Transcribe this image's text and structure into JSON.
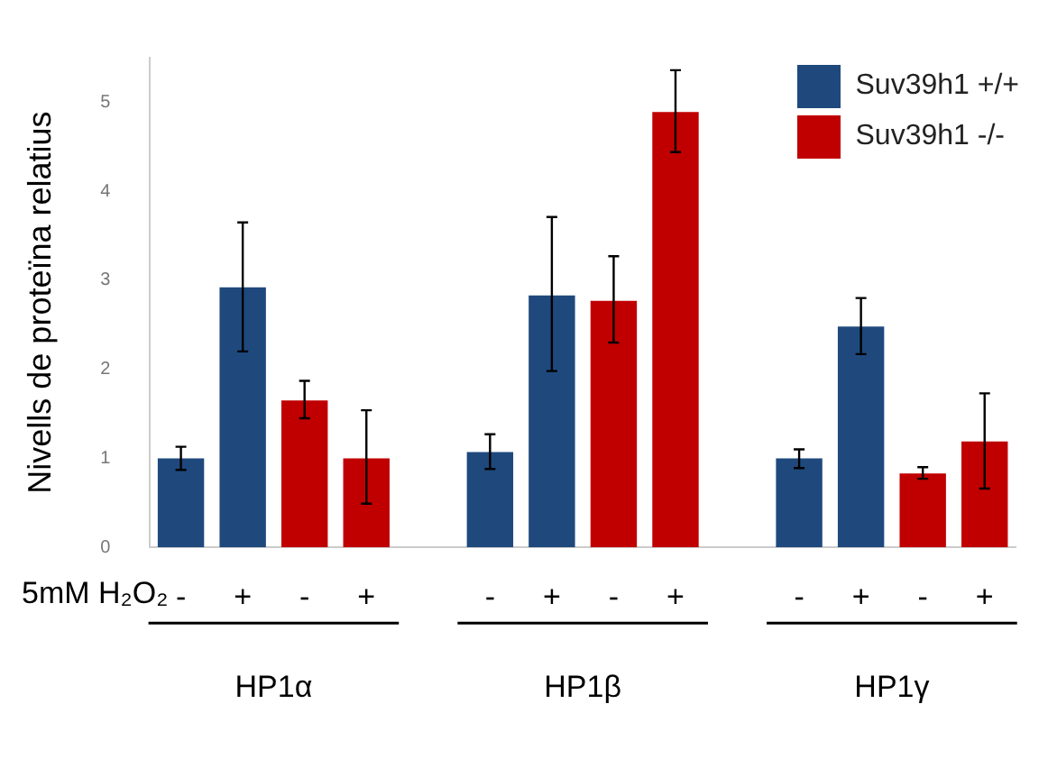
{
  "chart_data": {
    "type": "bar",
    "ylabel": "Nivells de proteïna relatius",
    "xlabel": "5mM H₂O₂",
    "categories": [
      "-",
      "+",
      "-",
      "+",
      null,
      "-",
      "+",
      "-",
      "+",
      null,
      "-",
      "+",
      "-",
      "+"
    ],
    "series": [
      {
        "name": "Suv39h1 +/+",
        "color": "#1f497d",
        "values": [
          1.0,
          2.92,
          null,
          null,
          null,
          1.07,
          2.83,
          null,
          null,
          null,
          1.0,
          2.48,
          null,
          null
        ],
        "errors": [
          [
            0.87,
            1.13
          ],
          [
            2.2,
            3.65
          ],
          null,
          null,
          null,
          [
            0.88,
            1.27
          ],
          [
            1.98,
            3.71
          ],
          null,
          null,
          null,
          [
            0.89,
            1.1
          ],
          [
            2.17,
            2.8
          ],
          null,
          null
        ]
      },
      {
        "name": "Suv39h1 -/-",
        "color": "#c00000",
        "values": [
          null,
          null,
          1.65,
          1.0,
          null,
          null,
          null,
          2.77,
          4.89,
          null,
          null,
          null,
          0.83,
          1.19
        ],
        "errors": [
          null,
          null,
          [
            1.45,
            1.87
          ],
          [
            0.49,
            1.54
          ],
          null,
          null,
          null,
          [
            2.3,
            3.27
          ],
          [
            4.44,
            5.36
          ],
          null,
          null,
          null,
          [
            0.77,
            0.9
          ],
          [
            0.66,
            1.73
          ]
        ]
      }
    ],
    "annotations": [
      "HP1α",
      "HP1β",
      "HP1γ"
    ],
    "ylim": [
      0,
      5.5
    ],
    "yticks": [
      0,
      1,
      2,
      3,
      4,
      5
    ],
    "grid": false,
    "legend": "top right"
  }
}
